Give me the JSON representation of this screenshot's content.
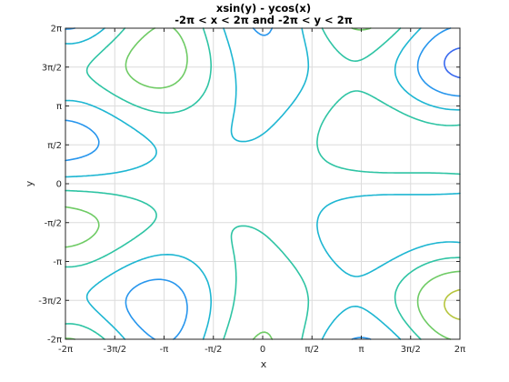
{
  "chart_data": {
    "type": "contour",
    "title": "xsin(y) - ycos(x)",
    "subtitle": "-2π < x < 2π and -2π < y < 2π",
    "xlabel": "x",
    "ylabel": "y",
    "function": "x*sin(y) - y*cos(x)",
    "xlim": [
      -6.2832,
      6.2832
    ],
    "ylim": [
      -6.2832,
      6.2832
    ],
    "grid": true,
    "colormap": [
      "#3e26a8",
      "#4743e6",
      "#2e87f7",
      "#1cb4d8",
      "#31c69e",
      "#8ecd48",
      "#e9ba30",
      "#f9fb15"
    ],
    "contour_levels": [
      -18,
      -14,
      -10,
      -6,
      -2,
      2,
      6,
      10,
      14,
      18
    ],
    "x_ticks": [
      {
        "value": -6.2832,
        "label": "-2π"
      },
      {
        "value": -4.7124,
        "label": "-3π/2"
      },
      {
        "value": -3.1416,
        "label": "-π"
      },
      {
        "value": -1.5708,
        "label": "-π/2"
      },
      {
        "value": 0,
        "label": "0"
      },
      {
        "value": 1.5708,
        "label": "π/2"
      },
      {
        "value": 3.1416,
        "label": "π"
      },
      {
        "value": 4.7124,
        "label": "3π/2"
      },
      {
        "value": 6.2832,
        "label": "2π"
      }
    ],
    "y_ticks": [
      {
        "value": -6.2832,
        "label": "-2π"
      },
      {
        "value": -4.7124,
        "label": "-3π/2"
      },
      {
        "value": -3.1416,
        "label": "-π"
      },
      {
        "value": -1.5708,
        "label": "-π/2"
      },
      {
        "value": 0,
        "label": "0"
      },
      {
        "value": 1.5708,
        "label": "π/2"
      },
      {
        "value": 3.1416,
        "label": "π"
      },
      {
        "value": 4.7124,
        "label": "3π/2"
      },
      {
        "value": 6.2832,
        "label": "2π"
      }
    ]
  }
}
